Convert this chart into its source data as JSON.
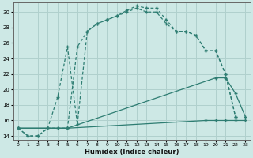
{
  "xlabel": "Humidex (Indice chaleur)",
  "bg_color": "#cde8e5",
  "line_color": "#2e7d72",
  "grid_color": "#b0d0cd",
  "ylim": [
    13.5,
    31.2
  ],
  "xlim": [
    -0.5,
    23.5
  ],
  "yticks": [
    14,
    16,
    18,
    20,
    22,
    24,
    26,
    28,
    30
  ],
  "xticks": [
    0,
    1,
    2,
    3,
    4,
    5,
    6,
    7,
    8,
    9,
    10,
    11,
    12,
    13,
    14,
    15,
    16,
    17,
    18,
    19,
    20,
    21,
    22,
    23
  ],
  "curve1_x": [
    0,
    1,
    2,
    3,
    4,
    5,
    6,
    7,
    8,
    9,
    10,
    11,
    12,
    13,
    14,
    15,
    16,
    17,
    18,
    19,
    20,
    21,
    22
  ],
  "curve1_y": [
    15,
    14,
    14,
    15,
    19,
    25.5,
    15.5,
    27.5,
    28.5,
    29.0,
    29.5,
    30.2,
    30.8,
    30.5,
    30.5,
    29.0,
    27.5,
    27.5,
    27.0,
    25.0,
    25.0,
    22.0,
    16.5
  ],
  "curve2_x": [
    0,
    1,
    2,
    3,
    4,
    5,
    6,
    7,
    8,
    9,
    10,
    11,
    12,
    13,
    14,
    15,
    16,
    17,
    18,
    19,
    20,
    21,
    22
  ],
  "curve2_y": [
    15,
    14,
    14,
    15,
    15.0,
    15.0,
    25.5,
    27.5,
    28.5,
    29.0,
    29.5,
    30.0,
    30.5,
    30.0,
    30.0,
    28.5,
    27.5,
    27.5,
    27.0,
    25.0,
    25.0,
    22.0,
    16.5
  ],
  "curve3_x": [
    0,
    5,
    20,
    21,
    22,
    23
  ],
  "curve3_y": [
    15,
    15,
    21.5,
    21.5,
    19.5,
    16.5
  ],
  "curve4_x": [
    0,
    5,
    19,
    20,
    21,
    22,
    23
  ],
  "curve4_y": [
    15,
    15,
    16.0,
    16.0,
    16.0,
    16.0,
    16.0
  ]
}
